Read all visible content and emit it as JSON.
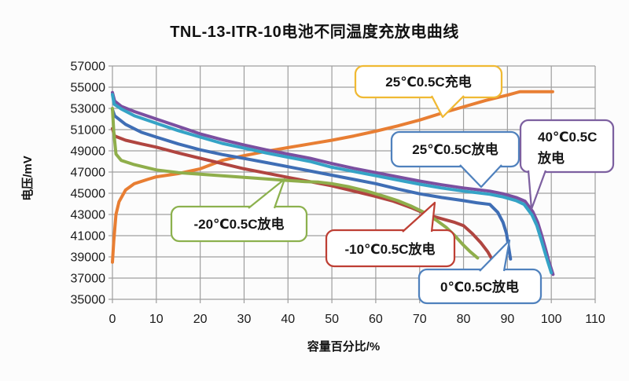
{
  "chart_data": {
    "type": "line",
    "title": "TNL-13-ITR-10电池不同温度充放电曲线",
    "xlabel": "容量百分比/%",
    "ylabel": "电压/mV",
    "xlim": [
      0,
      110
    ],
    "ylim": [
      35000,
      57000
    ],
    "xticks": [
      0,
      10,
      20,
      30,
      40,
      50,
      60,
      70,
      80,
      90,
      100,
      110
    ],
    "yticks": [
      57000,
      55000,
      53000,
      51000,
      49000,
      47000,
      45000,
      43000,
      41000,
      39000,
      37000,
      35000
    ],
    "grid": true,
    "gridline_color": "#9E9E9E",
    "legend_position": "callouts-on-plot",
    "series": [
      {
        "id": "charge-25c",
        "name": "25℃0.5C充电",
        "color": "#E87E33",
        "points": [
          [
            0,
            38500
          ],
          [
            0.3,
            40500
          ],
          [
            0.8,
            43000
          ],
          [
            1.5,
            44200
          ],
          [
            3,
            45300
          ],
          [
            5,
            45900
          ],
          [
            8,
            46300
          ],
          [
            10,
            46550
          ],
          [
            15,
            46850
          ],
          [
            20,
            47300
          ],
          [
            25,
            48100
          ],
          [
            30,
            48550
          ],
          [
            35,
            48950
          ],
          [
            40,
            49300
          ],
          [
            45,
            49650
          ],
          [
            50,
            50000
          ],
          [
            55,
            50400
          ],
          [
            60,
            50850
          ],
          [
            65,
            51350
          ],
          [
            70,
            51900
          ],
          [
            75,
            52550
          ],
          [
            80,
            53150
          ],
          [
            85,
            53750
          ],
          [
            88,
            54050
          ],
          [
            90,
            54250
          ],
          [
            92,
            54480
          ],
          [
            92.8,
            54570
          ],
          [
            100.3,
            54570
          ]
        ]
      },
      {
        "id": "discharge-40c",
        "name": "40℃0.5C放电",
        "color": "#7B4FA0",
        "points": [
          [
            0,
            54500
          ],
          [
            0.5,
            53700
          ],
          [
            2,
            53200
          ],
          [
            5,
            52700
          ],
          [
            10,
            52000
          ],
          [
            15,
            51300
          ],
          [
            20,
            50600
          ],
          [
            25,
            50050
          ],
          [
            30,
            49550
          ],
          [
            35,
            49100
          ],
          [
            40,
            48700
          ],
          [
            45,
            48300
          ],
          [
            50,
            47800
          ],
          [
            55,
            47350
          ],
          [
            60,
            46950
          ],
          [
            65,
            46550
          ],
          [
            70,
            46150
          ],
          [
            75,
            45800
          ],
          [
            80,
            45500
          ],
          [
            83,
            45350
          ],
          [
            86,
            45200
          ],
          [
            89,
            44950
          ],
          [
            92,
            44600
          ],
          [
            94,
            44250
          ],
          [
            95.8,
            43250
          ],
          [
            96.9,
            42250
          ],
          [
            97.8,
            41050
          ],
          [
            98.7,
            39750
          ],
          [
            99.4,
            38650
          ],
          [
            100.4,
            37350
          ]
        ]
      },
      {
        "id": "discharge-25c",
        "name": "25℃0.5C放电",
        "color": "#35A3C6",
        "points": [
          [
            0,
            54300
          ],
          [
            0.4,
            53400
          ],
          [
            2,
            52950
          ],
          [
            5,
            52300
          ],
          [
            10,
            51600
          ],
          [
            15,
            50900
          ],
          [
            20,
            50300
          ],
          [
            25,
            49700
          ],
          [
            30,
            49250
          ],
          [
            35,
            48800
          ],
          [
            40,
            48400
          ],
          [
            45,
            48000
          ],
          [
            50,
            47450
          ],
          [
            55,
            47050
          ],
          [
            60,
            46650
          ],
          [
            65,
            46250
          ],
          [
            70,
            45850
          ],
          [
            75,
            45500
          ],
          [
            80,
            45200
          ],
          [
            83,
            45050
          ],
          [
            86,
            44900
          ],
          [
            89,
            44650
          ],
          [
            92,
            44300
          ],
          [
            93.8,
            43950
          ],
          [
            95.6,
            42950
          ],
          [
            96.7,
            41950
          ],
          [
            97.6,
            40750
          ],
          [
            98.5,
            39500
          ],
          [
            99.2,
            38550
          ],
          [
            100,
            37500
          ]
        ]
      },
      {
        "id": "discharge-0c",
        "name": "0℃0.5C放电",
        "color": "#3F6EB5",
        "points": [
          [
            0,
            52900
          ],
          [
            0.5,
            52300
          ],
          [
            3,
            51500
          ],
          [
            6.6,
            50750
          ],
          [
            10,
            50300
          ],
          [
            15,
            49650
          ],
          [
            20,
            49100
          ],
          [
            25,
            48650
          ],
          [
            30,
            48280
          ],
          [
            35,
            47900
          ],
          [
            40,
            47500
          ],
          [
            45,
            47100
          ],
          [
            50,
            46700
          ],
          [
            55,
            46300
          ],
          [
            60,
            45900
          ],
          [
            65,
            45400
          ],
          [
            70,
            44950
          ],
          [
            75,
            44600
          ],
          [
            80,
            44300
          ],
          [
            83,
            44100
          ],
          [
            86,
            43950
          ],
          [
            87.8,
            43200
          ],
          [
            89,
            42250
          ],
          [
            89.8,
            41200
          ],
          [
            90.2,
            40100
          ],
          [
            90.7,
            38800
          ]
        ]
      },
      {
        "id": "discharge-minus10c",
        "name": "-10℃0.5C放电",
        "color": "#B04540",
        "points": [
          [
            0,
            51100
          ],
          [
            0.5,
            50400
          ],
          [
            3,
            50000
          ],
          [
            6.6,
            49650
          ],
          [
            10,
            49350
          ],
          [
            15,
            48800
          ],
          [
            20,
            48300
          ],
          [
            25,
            47800
          ],
          [
            30,
            47300
          ],
          [
            35,
            46900
          ],
          [
            40,
            46500
          ],
          [
            45,
            46100
          ],
          [
            50,
            45700
          ],
          [
            55,
            45200
          ],
          [
            60,
            44700
          ],
          [
            64,
            44250
          ],
          [
            68,
            43650
          ],
          [
            72,
            42950
          ],
          [
            75,
            42600
          ],
          [
            78,
            42250
          ],
          [
            80,
            41950
          ],
          [
            82,
            41200
          ],
          [
            84,
            40300
          ],
          [
            85.5,
            39500
          ],
          [
            86.6,
            38700
          ],
          [
            87.3,
            38350
          ]
        ]
      },
      {
        "id": "discharge-minus20c",
        "name": "-20℃0.5C放电",
        "color": "#8FAE4B",
        "points": [
          [
            0,
            53000
          ],
          [
            0.3,
            50800
          ],
          [
            0.8,
            48700
          ],
          [
            2,
            48100
          ],
          [
            5,
            47700
          ],
          [
            10,
            47200
          ],
          [
            15,
            46950
          ],
          [
            20,
            46800
          ],
          [
            25,
            46650
          ],
          [
            30,
            46500
          ],
          [
            35,
            46350
          ],
          [
            40,
            46200
          ],
          [
            44,
            46100
          ],
          [
            47,
            46050
          ],
          [
            50,
            45900
          ],
          [
            54,
            45600
          ],
          [
            58,
            45200
          ],
          [
            62,
            44700
          ],
          [
            65,
            44300
          ],
          [
            68,
            43800
          ],
          [
            71,
            43200
          ],
          [
            74,
            42400
          ],
          [
            76,
            41800
          ],
          [
            78,
            41000
          ],
          [
            80,
            40100
          ],
          [
            81.5,
            39500
          ],
          [
            83.2,
            38900
          ]
        ]
      }
    ],
    "callouts": [
      {
        "id": "callout-charge-25c",
        "label": "25℃0.5C充电",
        "border": "#F0B933"
      },
      {
        "id": "callout-discharge-25c",
        "label": "25℃0.5C放电",
        "border": "#4F81BD"
      },
      {
        "id": "callout-discharge-40c",
        "label": "40℃0.5C放电",
        "lines": [
          "40℃0.5C",
          "放电"
        ],
        "border": "#7D60A0"
      },
      {
        "id": "callout-discharge-minus20c",
        "label": "-20℃0.5C放电",
        "border": "#8CB14E"
      },
      {
        "id": "callout-discharge-minus10c",
        "label": "-10℃0.5C放电",
        "border": "#BE3F34"
      },
      {
        "id": "callout-discharge-0c",
        "label": "0℃0.5C放电",
        "border": "#4F81BD"
      }
    ]
  }
}
